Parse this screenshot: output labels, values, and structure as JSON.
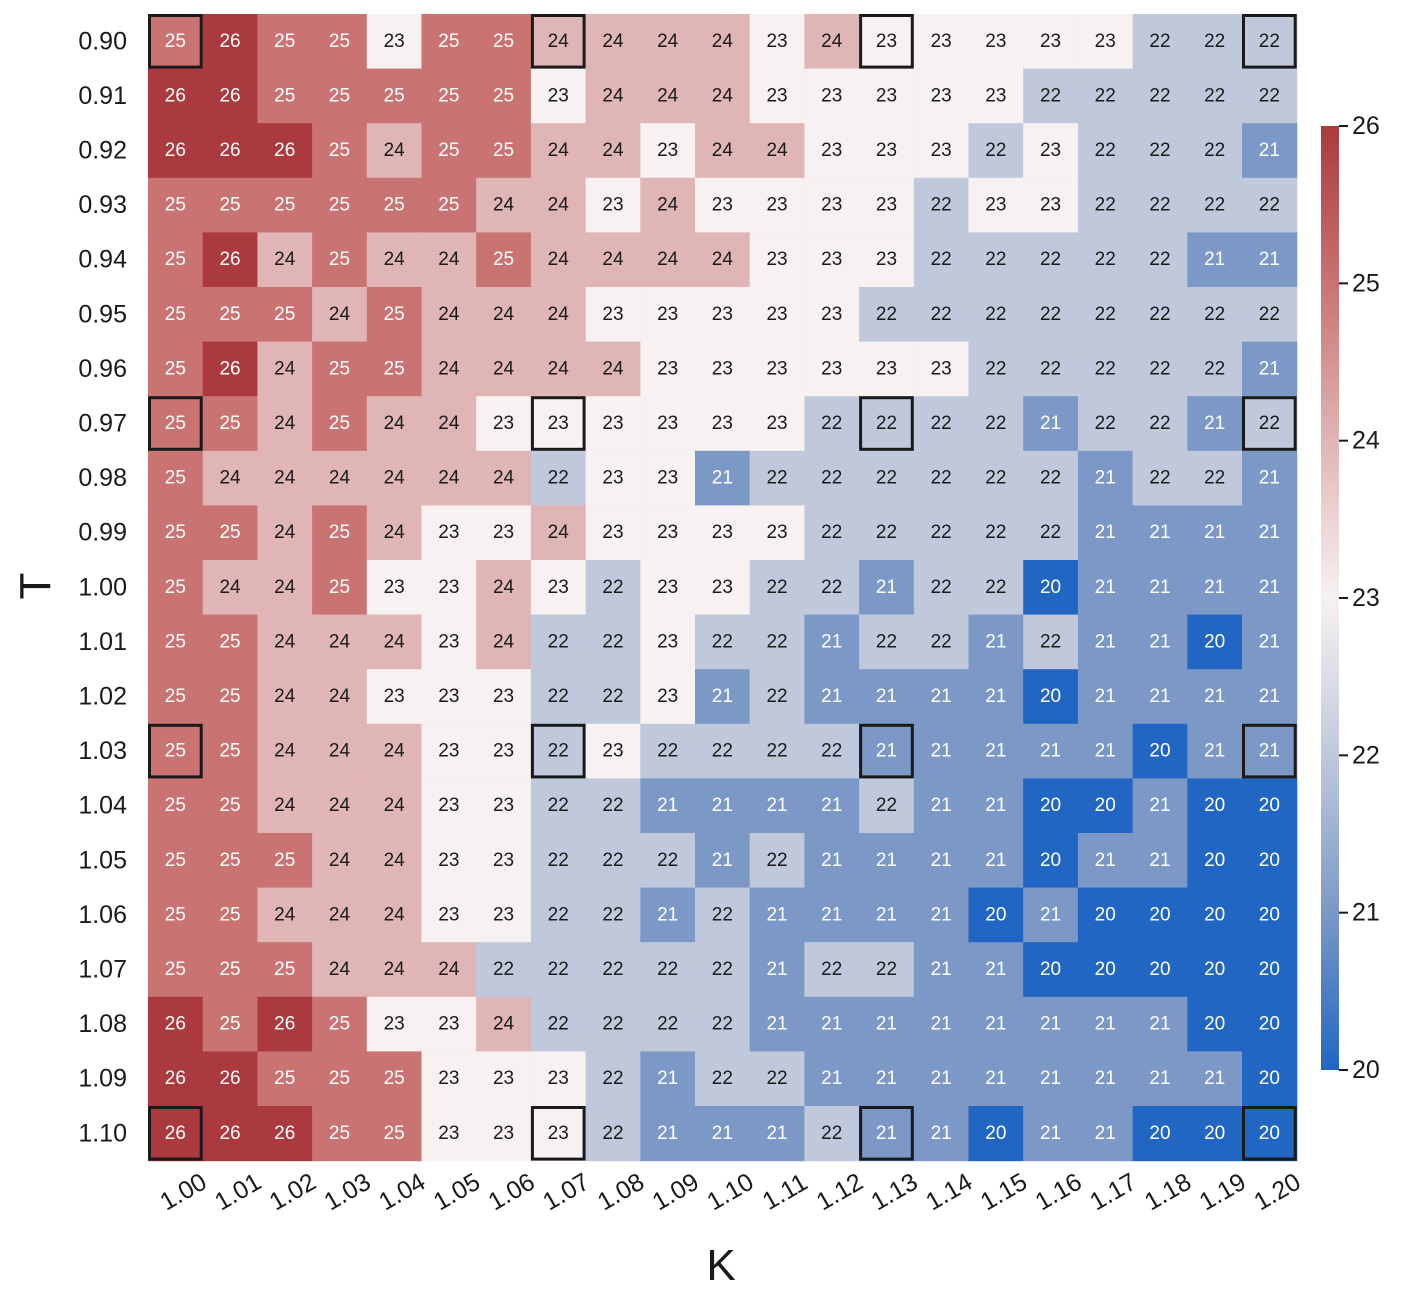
{
  "chart_data": {
    "type": "heatmap",
    "xlabel": "K",
    "ylabel": "T",
    "x": [
      "1.00",
      "1.01",
      "1.02",
      "1.03",
      "1.04",
      "1.05",
      "1.06",
      "1.07",
      "1.08",
      "1.09",
      "1.10",
      "1.11",
      "1.12",
      "1.13",
      "1.14",
      "1.15",
      "1.16",
      "1.17",
      "1.18",
      "1.19",
      "1.20"
    ],
    "y": [
      "0.90",
      "0.91",
      "0.92",
      "0.93",
      "0.94",
      "0.95",
      "0.96",
      "0.97",
      "0.98",
      "0.99",
      "1.00",
      "1.01",
      "1.02",
      "1.03",
      "1.04",
      "1.05",
      "1.06",
      "1.07",
      "1.08",
      "1.09",
      "1.10"
    ],
    "values": [
      [
        25,
        26,
        25,
        25,
        23,
        25,
        25,
        24,
        24,
        24,
        24,
        23,
        24,
        23,
        23,
        23,
        23,
        23,
        22,
        22,
        22
      ],
      [
        26,
        26,
        25,
        25,
        25,
        25,
        25,
        23,
        24,
        24,
        24,
        23,
        23,
        23,
        23,
        23,
        22,
        22,
        22,
        22,
        22
      ],
      [
        26,
        26,
        26,
        25,
        24,
        25,
        25,
        24,
        24,
        23,
        24,
        24,
        23,
        23,
        23,
        22,
        23,
        22,
        22,
        22,
        21
      ],
      [
        25,
        25,
        25,
        25,
        25,
        25,
        24,
        24,
        23,
        24,
        23,
        23,
        23,
        23,
        22,
        23,
        23,
        22,
        22,
        22,
        22
      ],
      [
        25,
        26,
        24,
        25,
        24,
        24,
        25,
        24,
        24,
        24,
        24,
        23,
        23,
        23,
        22,
        22,
        22,
        22,
        22,
        21,
        21
      ],
      [
        25,
        25,
        25,
        24,
        25,
        24,
        24,
        24,
        23,
        23,
        23,
        23,
        23,
        22,
        22,
        22,
        22,
        22,
        22,
        22,
        22
      ],
      [
        25,
        26,
        24,
        25,
        25,
        24,
        24,
        24,
        24,
        23,
        23,
        23,
        23,
        23,
        23,
        22,
        22,
        22,
        22,
        22,
        21
      ],
      [
        25,
        25,
        24,
        25,
        24,
        24,
        23,
        23,
        23,
        23,
        23,
        23,
        22,
        22,
        22,
        22,
        21,
        22,
        22,
        21,
        22
      ],
      [
        25,
        24,
        24,
        24,
        24,
        24,
        24,
        22,
        23,
        23,
        21,
        22,
        22,
        22,
        22,
        22,
        22,
        21,
        22,
        22,
        21
      ],
      [
        25,
        25,
        24,
        25,
        24,
        23,
        23,
        24,
        23,
        23,
        23,
        23,
        22,
        22,
        22,
        22,
        22,
        21,
        21,
        21,
        21
      ],
      [
        25,
        24,
        24,
        25,
        23,
        23,
        24,
        23,
        22,
        23,
        23,
        22,
        22,
        21,
        22,
        22,
        20,
        21,
        21,
        21,
        21
      ],
      [
        25,
        25,
        24,
        24,
        24,
        23,
        24,
        22,
        22,
        23,
        22,
        22,
        21,
        22,
        22,
        21,
        22,
        21,
        21,
        20,
        21
      ],
      [
        25,
        25,
        24,
        24,
        23,
        23,
        23,
        22,
        22,
        23,
        21,
        22,
        21,
        21,
        21,
        21,
        20,
        21,
        21,
        21,
        21
      ],
      [
        25,
        25,
        24,
        24,
        24,
        23,
        23,
        22,
        23,
        22,
        22,
        22,
        22,
        21,
        21,
        21,
        21,
        21,
        20,
        21,
        21
      ],
      [
        25,
        25,
        24,
        24,
        24,
        23,
        23,
        22,
        22,
        21,
        21,
        21,
        21,
        22,
        21,
        21,
        20,
        20,
        21,
        20,
        20
      ],
      [
        25,
        25,
        25,
        24,
        24,
        23,
        23,
        22,
        22,
        22,
        21,
        22,
        21,
        21,
        21,
        21,
        20,
        21,
        21,
        20,
        20
      ],
      [
        25,
        25,
        24,
        24,
        24,
        23,
        23,
        22,
        22,
        21,
        22,
        21,
        21,
        21,
        21,
        20,
        21,
        20,
        20,
        20,
        20
      ],
      [
        25,
        25,
        25,
        24,
        24,
        24,
        22,
        22,
        22,
        22,
        22,
        21,
        22,
        22,
        21,
        21,
        20,
        20,
        20,
        20,
        20
      ],
      [
        26,
        25,
        26,
        25,
        23,
        23,
        24,
        22,
        22,
        22,
        22,
        21,
        21,
        21,
        21,
        21,
        21,
        21,
        21,
        20,
        20
      ],
      [
        26,
        26,
        25,
        25,
        25,
        23,
        23,
        23,
        22,
        21,
        22,
        22,
        21,
        21,
        21,
        21,
        21,
        21,
        21,
        21,
        20
      ],
      [
        26,
        26,
        26,
        25,
        25,
        23,
        23,
        23,
        22,
        21,
        21,
        21,
        22,
        21,
        21,
        20,
        21,
        21,
        20,
        20,
        20
      ]
    ],
    "vmin": 20,
    "vmax": 26,
    "colormap": "blue-white-red (diverging)",
    "colors": {
      "20": "#2166c2",
      "21": "#7b98c6",
      "22": "#c0c9dc",
      "23": "#f7f1f1",
      "24": "#e0b5b5",
      "25": "#c97373",
      "26": "#aa3a3e"
    },
    "colorbar_ticks": [
      "20",
      "21",
      "22",
      "23",
      "24",
      "25",
      "26"
    ],
    "highlighted_cells": [
      [
        0,
        0
      ],
      [
        0,
        7
      ],
      [
        0,
        13
      ],
      [
        0,
        20
      ],
      [
        7,
        0
      ],
      [
        7,
        7
      ],
      [
        7,
        13
      ],
      [
        7,
        20
      ],
      [
        13,
        0
      ],
      [
        13,
        7
      ],
      [
        13,
        13
      ],
      [
        13,
        20
      ],
      [
        20,
        0
      ],
      [
        20,
        7
      ],
      [
        20,
        13
      ],
      [
        20,
        20
      ]
    ],
    "annotations": "each cell shows its integer value"
  }
}
